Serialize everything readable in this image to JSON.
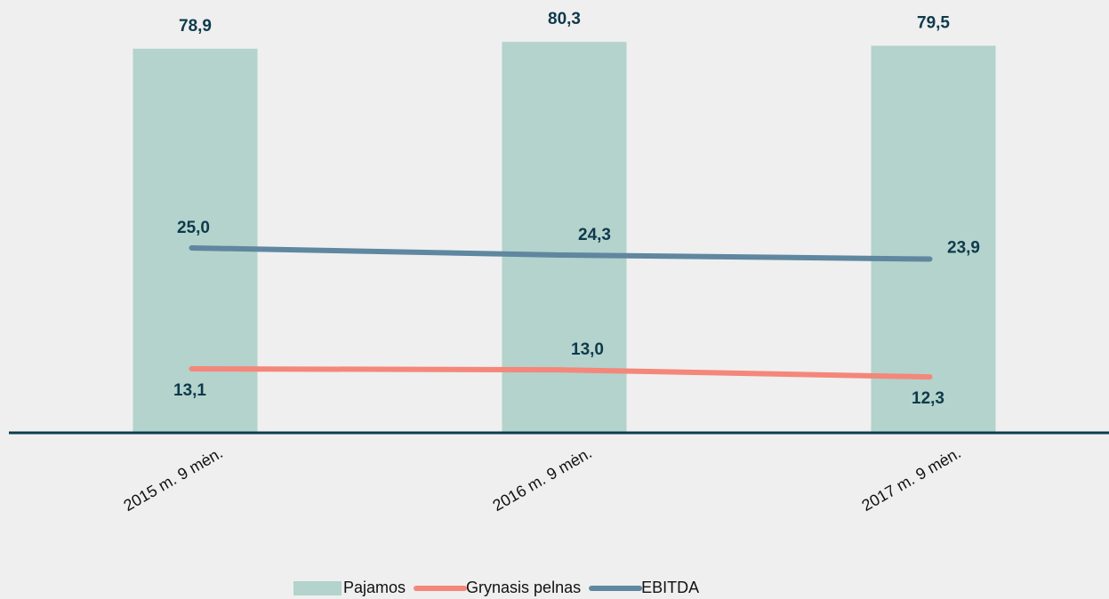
{
  "chart_data": {
    "type": "bar-line",
    "categories": [
      "2015 m. 9 mėn.",
      "2016 m. 9 mėn.",
      "2017 m. 9 mėn."
    ],
    "series": [
      {
        "name": "Pajamos",
        "type": "bar",
        "color": "#b3d3cc",
        "values": [
          78.9,
          80.3,
          79.5
        ],
        "value_labels": [
          "78,9",
          "80,3",
          "79,5"
        ]
      },
      {
        "name": "Grynasis pelnas",
        "type": "line",
        "axis": "y2",
        "color": "#f4877a",
        "values": [
          13.1,
          13.0,
          12.3
        ],
        "value_labels": [
          "13,1",
          "13,0",
          "12,3"
        ]
      },
      {
        "name": "EBITDA",
        "type": "line",
        "axis": "y2",
        "color": "#5f87a0",
        "values": [
          25.0,
          24.3,
          23.9
        ],
        "value_labels": [
          "25,0",
          "24,3",
          "23,9"
        ]
      }
    ],
    "ylim": [
      0,
      88.9
    ],
    "y2lim": [
      6.8,
      49.4
    ]
  }
}
